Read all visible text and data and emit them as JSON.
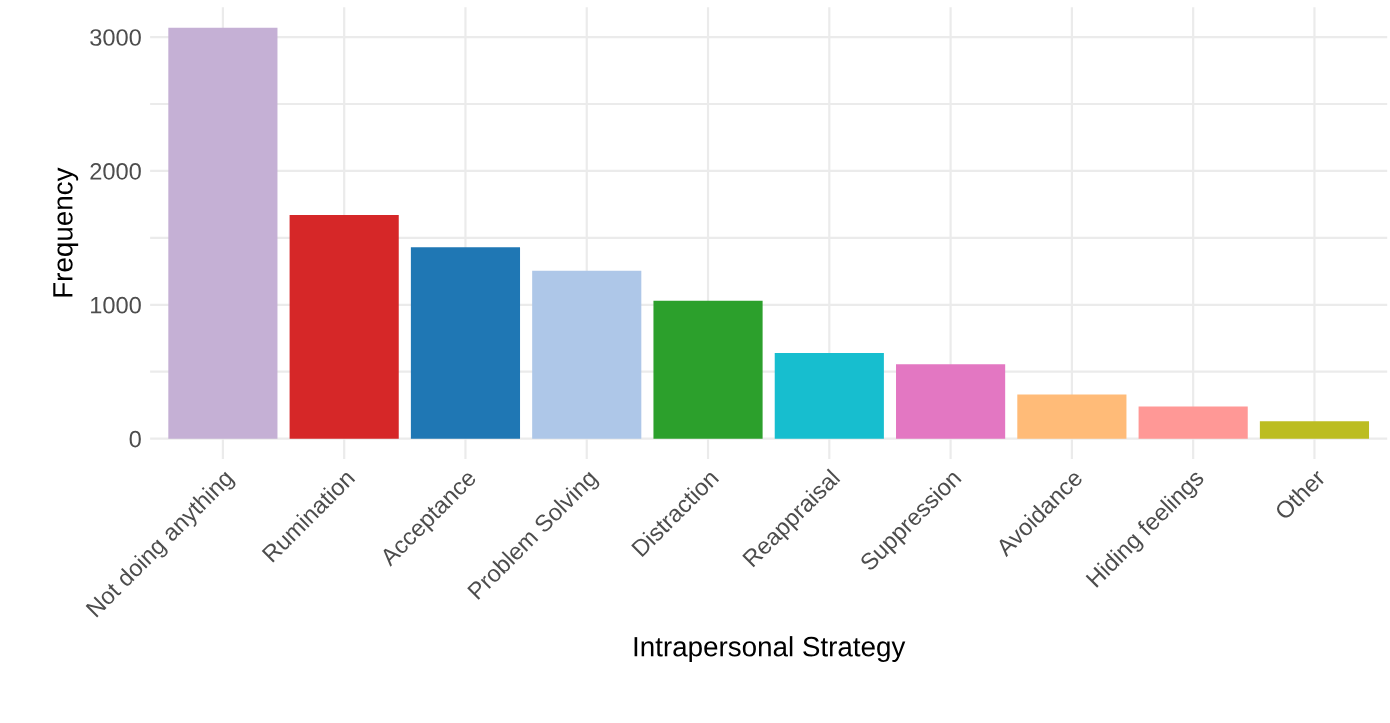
{
  "chart_data": {
    "type": "bar",
    "xlabel": "Intrapersonal Strategy",
    "ylabel": "Frequency",
    "categories": [
      "Not doing anything",
      "Rumination",
      "Acceptance",
      "Problem Solving",
      "Distraction",
      "Reappraisal",
      "Suppression",
      "Avoidance",
      "Hiding feelings",
      "Other"
    ],
    "values": [
      3070,
      1670,
      1430,
      1255,
      1030,
      640,
      555,
      330,
      240,
      130
    ],
    "colors": [
      "#c5b0d5",
      "#d62728",
      "#1f77b4",
      "#aec7e8",
      "#2ca02c",
      "#17becf",
      "#e377c2",
      "#ffbb78",
      "#ff9896",
      "#bcbd22"
    ],
    "ylim": [
      -153,
      3223
    ],
    "yticks": [
      0,
      {
        "value": 500,
        "label": null
      },
      1000,
      {
        "value": 1500,
        "label": null
      },
      2000,
      {
        "value": 2500,
        "label": null
      },
      3000
    ],
    "grid": true,
    "legend": false
  }
}
